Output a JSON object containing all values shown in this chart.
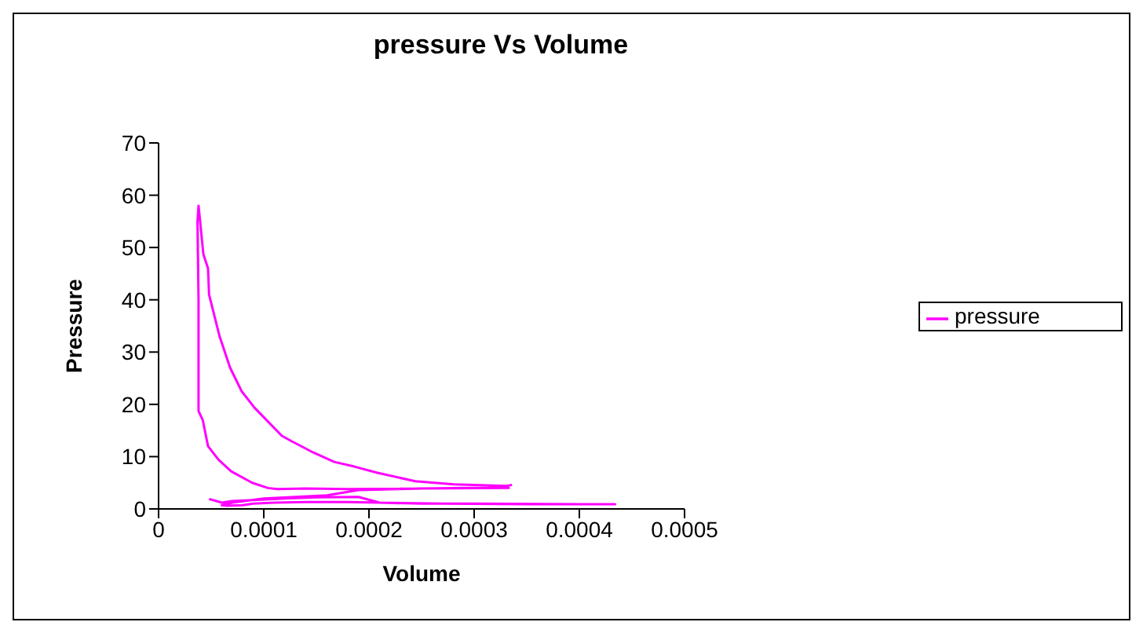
{
  "chart_data": {
    "type": "line",
    "title": "pressure Vs Volume",
    "xlabel": "Volume",
    "ylabel": "Pressure",
    "xlim": [
      0,
      0.0005
    ],
    "xticks": [
      0,
      0.0001,
      0.0002,
      0.0003,
      0.0004,
      0.0005
    ],
    "ylim": [
      0,
      70
    ],
    "yticks": [
      0,
      10,
      20,
      30,
      40,
      50,
      60,
      70
    ],
    "legend": "right",
    "marker": "none",
    "series": [
      {
        "name": "pressure",
        "color": "#ff00ff",
        "x": [
          4.8e-05,
          5.5e-05,
          6e-05,
          7e-05,
          9e-05,
          0.00012,
          0.00015,
          0.00019,
          0.00021,
          0.00027,
          0.00035,
          0.000434,
          0.0004,
          0.0003,
          0.00025,
          0.00021,
          0.00018,
          0.00014,
          0.00011,
          9e-05,
          8e-05,
          6.5e-05,
          6e-05,
          7e-05,
          0.0001,
          0.00013,
          0.00016,
          0.00019,
          0.00025,
          0.00033,
          0.000333,
          0.00025,
          0.00018,
          0.00014,
          0.000113,
          0.000104,
          8.9e-05,
          6.9e-05,
          5.7e-05,
          4.7e-05,
          4.2e-05,
          3.8e-05,
          3.8e-05,
          3.8e-05,
          3.7e-05,
          3.8e-05,
          4.26e-05,
          4.7e-05,
          4.8e-05,
          5.8e-05,
          6.8e-05,
          7.9e-05,
          9.1e-05,
          0.000105,
          0.000117,
          0.000126,
          0.000145,
          0.000167,
          0.000186,
          0.000208,
          0.000244,
          0.000281,
          0.000331,
          0.000336
        ],
        "values": [
          1.9,
          1.5,
          1.2,
          1.5,
          1.7,
          2.0,
          2.2,
          2.3,
          1.2,
          1.0,
          0.9,
          0.9,
          0.9,
          1.0,
          1.0,
          1.2,
          1.3,
          1.3,
          1.2,
          1.0,
          0.7,
          0.6,
          0.7,
          1.2,
          2.0,
          2.3,
          2.6,
          3.6,
          3.9,
          4.1,
          4.0,
          3.9,
          3.8,
          3.9,
          3.8,
          4.0,
          5.0,
          7.2,
          9.4,
          12,
          17,
          18.7,
          30,
          40,
          55,
          58,
          48.7,
          46,
          41,
          33,
          27,
          22.5,
          19.4,
          16.5,
          14,
          13,
          11,
          9,
          8.1,
          6.9,
          5.3,
          4.7,
          4.4,
          4.6
        ]
      }
    ]
  }
}
